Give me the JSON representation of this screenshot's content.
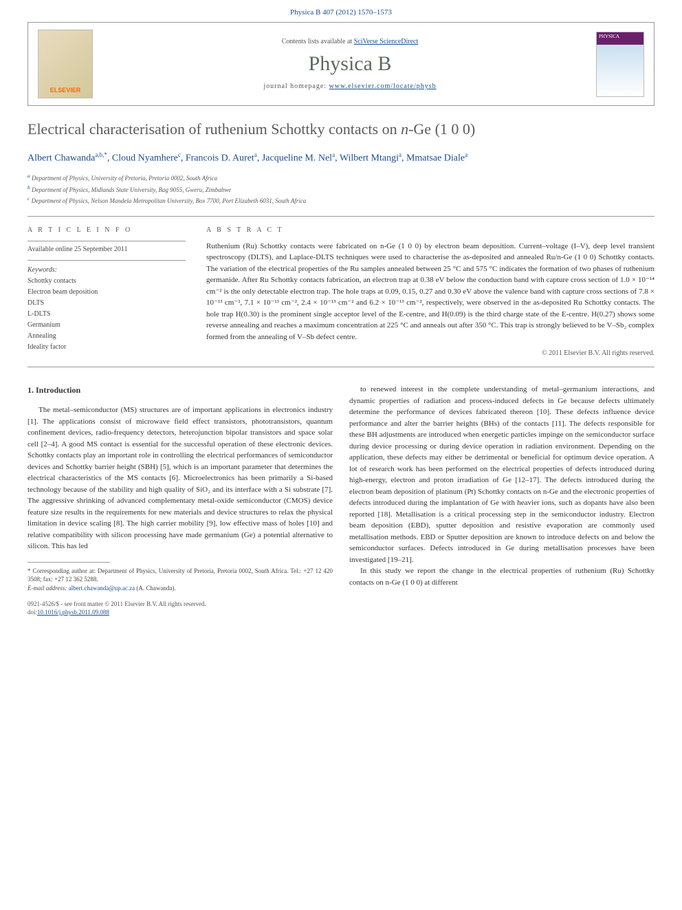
{
  "header": {
    "citation": "Physica B 407 (2012) 1570–1573"
  },
  "banner": {
    "publisher_logo_text": "ELSEVIER",
    "available_prefix": "Contents lists available at ",
    "available_link": "SciVerse ScienceDirect",
    "journal_title": "Physica B",
    "homepage_prefix": "journal homepage: ",
    "homepage_link": "www.elsevier.com/locate/physb",
    "cover_badge": "PHYSICA"
  },
  "article": {
    "title_pre": "Electrical characterisation of ruthenium Schottky contacts on ",
    "title_ital": "n",
    "title_post": "-Ge (1 0 0)",
    "authors_html": "Albert Chawanda",
    "author_sup1": "a,b,",
    "author_star": "*",
    "author2": ", Cloud Nyamhere",
    "author_sup2": "c",
    "author3": ", Francois D. Auret",
    "author_sup3": "a",
    "author4": ", Jacqueline M. Nel",
    "author_sup4": "a",
    "author5": ", Wilbert Mtangi",
    "author_sup5": "a",
    "author6": ", Mmatsae Diale",
    "author_sup6": "a",
    "affiliations": [
      {
        "sup": "a",
        "text": " Department of Physics, University of Pretoria, Pretoria 0002, South Africa"
      },
      {
        "sup": "b",
        "text": " Department of Physics, Midlands State University, Bag 9055, Gweru, Zimbabwe"
      },
      {
        "sup": "c",
        "text": " Department of Physics, Nelson Mandela Metropolitan University, Box 7700, Port Elizabeth 6031, South Africa"
      }
    ]
  },
  "info": {
    "label": "A R T I C L E  I N F O",
    "available_online": "Available online 25 September 2011",
    "keywords_label": "Keywords:",
    "keywords": [
      "Schottky contacts",
      "Electron beam deposition",
      "DLTS",
      "L-DLTS",
      "Germanium",
      "Annealing",
      "Ideality factor"
    ]
  },
  "abstract": {
    "label": "A B S T R A C T",
    "text": "Ruthenium (Ru) Schottky contacts were fabricated on n-Ge (1 0 0) by electron beam deposition. Current–voltage (I–V), deep level transient spectroscopy (DLTS), and Laplace-DLTS techniques were used to characterise the as-deposited and annealed Ru/n-Ge (1 0 0) Schottky contacts. The variation of the electrical properties of the Ru samples annealed between 25 °C and 575 °C indicates the formation of two phases of ruthenium germanide. After Ru Schottky contacts fabrication, an electron trap at 0.38 eV below the conduction band with capture cross section of 1.0 × 10⁻¹⁴ cm⁻² is the only detectable electron trap. The hole traps at 0.09, 0.15, 0.27 and 0.30 eV above the valence band with capture cross sections of 7.8 × 10⁻¹³ cm⁻², 7.1 × 10⁻¹³ cm⁻², 2.4 × 10⁻¹³ cm⁻² and 6.2 × 10⁻¹³ cm⁻², respectively, were observed in the as-deposited Ru Schottky contacts. The hole trap H(0.30) is the prominent single acceptor level of the E-centre, and H(0.09) is the third charge state of the E-centre. H(0.27) shows some reverse annealing and reaches a maximum concentration at 225 °C and anneals out after 350 °C. This trap is strongly believed to be V–Sb₂ complex formed from the annealing of V–Sb defect centre.",
    "copyright": "© 2011 Elsevier B.V. All rights reserved."
  },
  "body": {
    "section_heading": "1. Introduction",
    "left_para": "The metal–semiconductor (MS) structures are of important applications in electronics industry [1]. The applications consist of microwave field effect transistors, phototransistors, quantum confinement devices, radio-frequency detectors, heterojunction bipolar transistors and space solar cell [2–4]. A good MS contact is essential for the successful operation of these electronic devices. Schottky contacts play an important role in controlling the electrical performances of semiconductor devices and Schottky barrier height (SBH) [5], which is an important parameter that determines the electrical characteristics of the MS contacts [6]. Microelectronics has been primarily a Si-based technology because of the stability and high quality of SiO₂ and its interface with a Si substrate [7]. The aggressive shrinking of advanced complementary metal-oxide semiconductor (CMOS) device feature size results in the requirements for new materials and device structures to relax the physical limitation in device scaling [8]. The high carrier mobility [9], low effective mass of holes [10] and relative compatibility with silicon processing have made germanium (Ge) a potential alternative to silicon. This has led",
    "right_para": "to renewed interest in the complete understanding of metal–germanium interactions, and dynamic properties of radiation and process-induced defects in Ge because defects ultimately determine the performance of devices fabricated thereon [10]. These defects influence device performance and alter the barrier heights (BHs) of the contacts [11]. The defects responsible for these BH adjustments are introduced when energetic particles impinge on the semiconductor surface during device processing or during device operation in radiation environment. Depending on the application, these defects may either be detrimental or beneficial for optimum device operation. A lot of research work has been performed on the electrical properties of defects introduced during high-energy, electron and proton irradiation of Ge [12–17]. The defects introduced during the electron beam deposition of platinum (Pt) Schottky contacts on n-Ge and the electronic properties of defects introduced during the implantation of Ge with heavier ions, such as dopants have also been reported [18]. Metallisation is a critical processing step in the semiconductor industry. Electron beam deposition (EBD), sputter deposition and resistive evaporation are commonly used metallisation methods. EBD or Sputter deposition are known to introduce defects on and below the semiconductor surfaces. Defects introduced in Ge during metallisation processes have been investigated [19–21].",
    "right_para2": "In this study we report the change in the electrical properties of ruthenium (Ru) Schottky contacts on n-Ge (1 0 0) at different"
  },
  "footnote": {
    "corr_label": "* Corresponding author at: Department of Physics, University of Pretoria, Pretoria 0002, South Africa. Tel.: +27 12 420 3508; fax: +27 12 362 5288.",
    "email_label": "E-mail address: ",
    "email": "albert.chawanda@up.ac.za",
    "email_suffix": " (A. Chawanda)."
  },
  "footer": {
    "issn": "0921-4526/$ - see front matter © 2011 Elsevier B.V. All rights reserved.",
    "doi_prefix": "doi:",
    "doi": "10.1016/j.physb.2011.09.088"
  },
  "colors": {
    "link": "#1a4d8f",
    "title_gray": "#5a5a5a",
    "journal_green": "#5a6b5a",
    "border": "#999999",
    "text": "#333333"
  },
  "typography": {
    "body_font": "Georgia, Times New Roman, serif",
    "title_size_pt": 22,
    "body_size_pt": 11,
    "footnote_size_pt": 9
  }
}
